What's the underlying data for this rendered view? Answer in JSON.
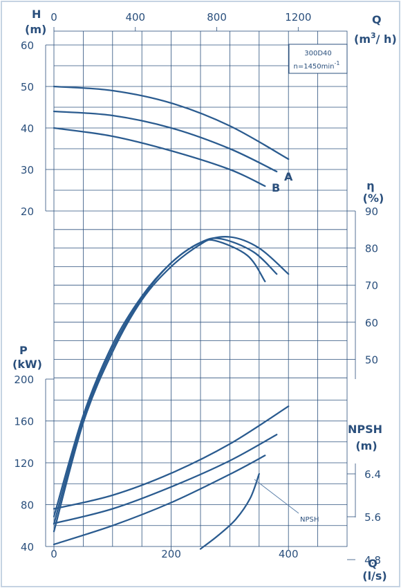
{
  "chart_data": {
    "type": "line",
    "model_box": {
      "model": "300D40",
      "speed": "n=1450min",
      "speed_exp": "-1"
    },
    "axes": {
      "q_top": {
        "title": "Q",
        "unit": "(m",
        "unit_exp": "3",
        "unit_rest": "/ h)",
        "ticks": [
          "0",
          "400",
          "800",
          "1200"
        ],
        "range": [
          0,
          1440
        ]
      },
      "q_bottom": {
        "title": "Q",
        "unit": "(l/s)",
        "ticks": [
          "0",
          "200",
          "400"
        ],
        "range": [
          0,
          500
        ]
      },
      "head": {
        "title": "H",
        "unit": "(m)",
        "ticks": [
          "20",
          "30",
          "40",
          "50",
          "60"
        ],
        "range": [
          20,
          60
        ]
      },
      "efficiency": {
        "title": "η",
        "unit": "(%)",
        "ticks": [
          "50",
          "60",
          "70",
          "80",
          "90"
        ],
        "range": [
          45,
          90
        ]
      },
      "power": {
        "title": "P",
        "unit": "(kW)",
        "ticks": [
          "40",
          "80",
          "120",
          "160",
          "200"
        ],
        "range": [
          40,
          200
        ]
      },
      "npsh": {
        "title": "NPSH",
        "unit": "(m)",
        "ticks": [
          "4.8",
          "5.6",
          "6.4"
        ],
        "range": [
          4.6,
          7.0
        ]
      }
    },
    "head_curves": [
      {
        "label": "",
        "points": [
          [
            0,
            50
          ],
          [
            100,
            49
          ],
          [
            200,
            46
          ],
          [
            300,
            40.5
          ],
          [
            400,
            32.5
          ]
        ]
      },
      {
        "label": "A",
        "points": [
          [
            0,
            44
          ],
          [
            100,
            43
          ],
          [
            200,
            40
          ],
          [
            300,
            35
          ],
          [
            380,
            29.5
          ]
        ]
      },
      {
        "label": "B",
        "points": [
          [
            0,
            40
          ],
          [
            100,
            38
          ],
          [
            200,
            34.5
          ],
          [
            300,
            30
          ],
          [
            360,
            26
          ]
        ]
      }
    ],
    "efficiency_curves": [
      {
        "label": "",
        "points": [
          [
            0,
            8
          ],
          [
            50,
            35
          ],
          [
            100,
            54
          ],
          [
            150,
            67
          ],
          [
            200,
            76
          ],
          [
            250,
            81.5
          ],
          [
            300,
            83
          ],
          [
            350,
            80
          ],
          [
            400,
            73
          ]
        ]
      },
      {
        "label": "",
        "points": [
          [
            0,
            6
          ],
          [
            50,
            34
          ],
          [
            100,
            53
          ],
          [
            150,
            66.5
          ],
          [
            200,
            76
          ],
          [
            250,
            81.5
          ],
          [
            285,
            82.5
          ],
          [
            340,
            79
          ],
          [
            380,
            73
          ]
        ]
      },
      {
        "label": "",
        "points": [
          [
            0,
            4
          ],
          [
            50,
            33
          ],
          [
            100,
            52
          ],
          [
            150,
            66
          ],
          [
            200,
            75
          ],
          [
            250,
            81
          ],
          [
            275,
            82
          ],
          [
            330,
            78
          ],
          [
            360,
            71
          ]
        ]
      }
    ],
    "power_curves": [
      {
        "label": "",
        "points": [
          [
            0,
            76
          ],
          [
            100,
            89
          ],
          [
            200,
            110
          ],
          [
            300,
            138
          ],
          [
            400,
            174
          ]
        ]
      },
      {
        "label": "",
        "points": [
          [
            0,
            62
          ],
          [
            100,
            76
          ],
          [
            200,
            97
          ],
          [
            300,
            122
          ],
          [
            380,
            147
          ]
        ]
      },
      {
        "label": "",
        "points": [
          [
            0,
            42
          ],
          [
            100,
            60
          ],
          [
            200,
            82
          ],
          [
            300,
            109
          ],
          [
            360,
            127
          ]
        ]
      }
    ],
    "npsh_curve": {
      "label": "NPSH",
      "points": [
        [
          250,
          5.0
        ],
        [
          280,
          5.25
        ],
        [
          310,
          5.55
        ],
        [
          335,
          5.95
        ],
        [
          350,
          6.4
        ]
      ]
    },
    "annotations": {
      "curve_a": "A",
      "curve_b": "B",
      "npsh_label": "NPSH"
    }
  }
}
